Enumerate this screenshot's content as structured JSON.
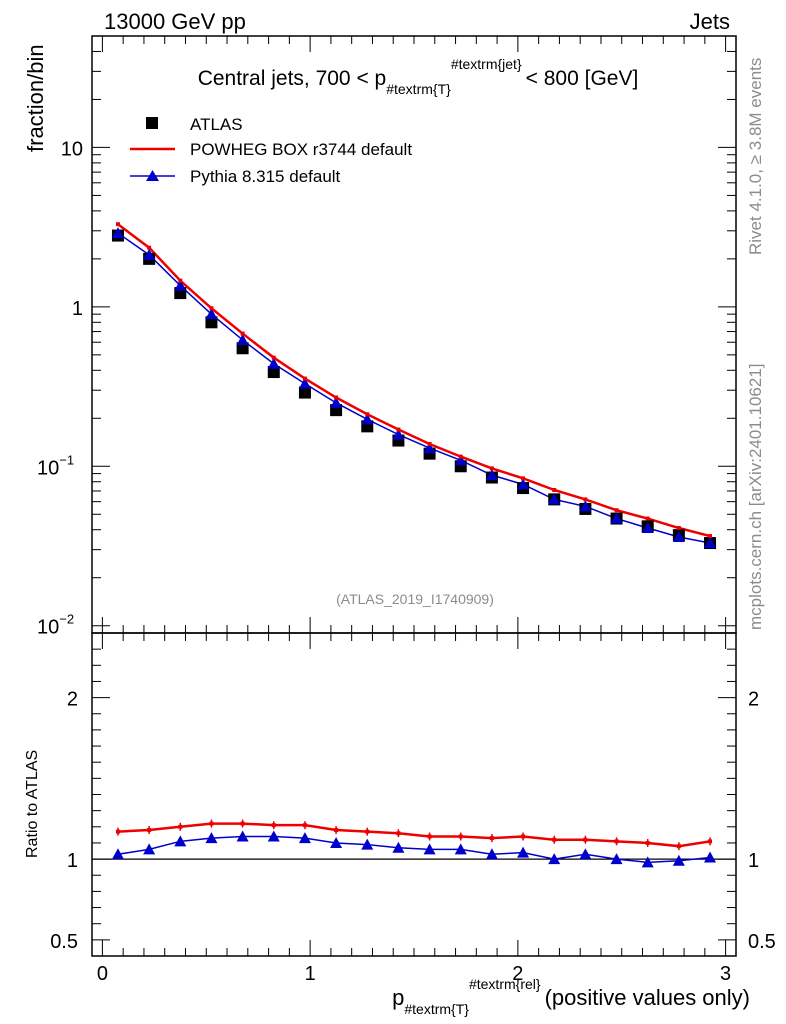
{
  "header": {
    "energy": "13000 GeV pp",
    "category": "Jets"
  },
  "side_labels": {
    "rivet": "Rivet 4.1.0, ≥ 3.8M events",
    "mcplots": "mcplots.cern.ch [arXiv:2401.10621]"
  },
  "analysis_id": "(ATLAS_2019_I1740909)",
  "colors": {
    "data": "#000000",
    "powheg": "#ee0000",
    "pythia": "#0000cc"
  },
  "chart_data": [
    {
      "type": "scatter",
      "panel": "main",
      "title_parts": {
        "prefix": "Central jets, 700 < p",
        "sub": "#textrm{T}",
        "sup": "#textrm{jet}",
        "suffix": "< 800 [GeV]"
      },
      "ylabel": "fraction/bin",
      "yscale": "log",
      "ylim": [
        0.009,
        50
      ],
      "xlim": [
        -0.05,
        3.05
      ],
      "yticks": [
        {
          "value": 10,
          "label": "10"
        },
        {
          "value": 1,
          "label": "1"
        },
        {
          "value": 0.1,
          "label": "10",
          "exp": "−1"
        },
        {
          "value": 0.01,
          "label": "10",
          "exp": "−2"
        }
      ],
      "legend": [
        {
          "label": "ATLAS",
          "marker": "square",
          "series": "ATLAS"
        },
        {
          "label": "POWHEG BOX r3744 default",
          "marker": "line",
          "series": "POWHEG"
        },
        {
          "label": "Pythia 8.315 default",
          "marker": "triangle",
          "series": "Pythia"
        }
      ],
      "x": [
        0.075,
        0.225,
        0.375,
        0.525,
        0.675,
        0.825,
        0.975,
        1.125,
        1.275,
        1.425,
        1.575,
        1.725,
        1.875,
        2.025,
        2.175,
        2.325,
        2.475,
        2.625,
        2.775,
        2.925
      ],
      "series": [
        {
          "name": "ATLAS",
          "values": [
            2.8,
            2.0,
            1.22,
            0.8,
            0.55,
            0.39,
            0.29,
            0.225,
            0.178,
            0.145,
            0.12,
            0.1,
            0.085,
            0.073,
            0.062,
            0.054,
            0.047,
            0.042,
            0.037,
            0.033
          ]
        },
        {
          "name": "POWHEG",
          "values": [
            3.3,
            2.35,
            1.46,
            0.98,
            0.68,
            0.48,
            0.355,
            0.27,
            0.212,
            0.17,
            0.138,
            0.115,
            0.097,
            0.084,
            0.071,
            0.062,
            0.053,
            0.047,
            0.041,
            0.0365
          ]
        },
        {
          "name": "Pythia",
          "values": [
            2.9,
            2.12,
            1.36,
            0.9,
            0.62,
            0.44,
            0.33,
            0.25,
            0.197,
            0.158,
            0.13,
            0.109,
            0.088,
            0.077,
            0.062,
            0.056,
            0.047,
            0.041,
            0.036,
            0.033
          ]
        }
      ]
    },
    {
      "type": "line",
      "panel": "ratio",
      "ylabel": "Ratio to ATLAS",
      "ylim": [
        0.4,
        2.4
      ],
      "xlim": [
        -0.05,
        3.05
      ],
      "reference": 1,
      "yticks": [
        {
          "value": 2,
          "label": "2"
        },
        {
          "value": 1,
          "label": "1"
        },
        {
          "value": 0.5,
          "label": "0.5"
        }
      ],
      "xticks": [
        {
          "value": 0,
          "label": "0"
        },
        {
          "value": 1,
          "label": "1"
        },
        {
          "value": 2,
          "label": "2"
        },
        {
          "value": 3,
          "label": "3"
        }
      ],
      "xlabel_parts": {
        "prefix": "p",
        "sub": "#textrm{T}",
        "sup": "#textrm{rel}",
        "suffix": "(positive values only)"
      },
      "x": [
        0.075,
        0.225,
        0.375,
        0.525,
        0.675,
        0.825,
        0.975,
        1.125,
        1.275,
        1.425,
        1.575,
        1.725,
        1.875,
        2.025,
        2.175,
        2.325,
        2.475,
        2.625,
        2.775,
        2.925
      ],
      "series": [
        {
          "name": "POWHEG",
          "values": [
            1.17,
            1.18,
            1.2,
            1.22,
            1.22,
            1.21,
            1.21,
            1.18,
            1.17,
            1.16,
            1.14,
            1.14,
            1.13,
            1.14,
            1.12,
            1.12,
            1.11,
            1.1,
            1.08,
            1.11
          ]
        },
        {
          "name": "Pythia",
          "values": [
            1.03,
            1.06,
            1.11,
            1.13,
            1.14,
            1.14,
            1.13,
            1.1,
            1.09,
            1.07,
            1.06,
            1.06,
            1.03,
            1.04,
            1.0,
            1.03,
            1.0,
            0.98,
            0.99,
            1.01
          ]
        }
      ]
    }
  ]
}
